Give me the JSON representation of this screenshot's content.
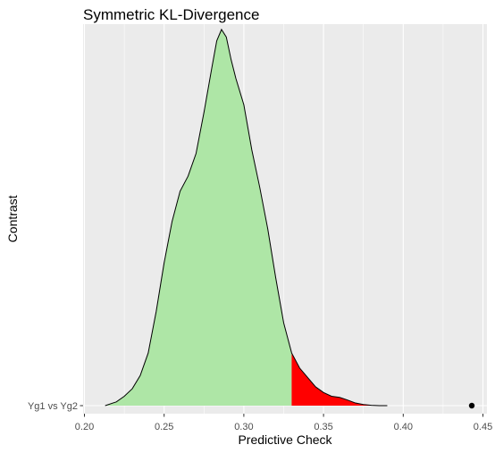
{
  "chart_data": {
    "type": "density",
    "title": "Symmetric KL-Divergence",
    "xlabel": "Predictive Check",
    "ylabel": "Contrast",
    "categories": [
      "Yg1 vs Yg2"
    ],
    "xlim": [
      0.2,
      0.45
    ],
    "x_ticks": [
      0.2,
      0.25,
      0.3,
      0.35,
      0.4,
      0.45
    ],
    "x_tick_labels": [
      "0.20",
      "0.25",
      "0.30",
      "0.35",
      "0.40",
      "0.45"
    ],
    "grid": true,
    "threshold": 0.33,
    "observed_point": 0.443,
    "density": {
      "x": [
        0.213,
        0.22,
        0.225,
        0.23,
        0.235,
        0.24,
        0.245,
        0.25,
        0.255,
        0.26,
        0.265,
        0.27,
        0.275,
        0.28,
        0.283,
        0.286,
        0.289,
        0.292,
        0.295,
        0.3,
        0.305,
        0.31,
        0.315,
        0.32,
        0.325,
        0.33,
        0.335,
        0.34,
        0.345,
        0.35,
        0.355,
        0.36,
        0.365,
        0.37,
        0.375,
        0.38,
        0.385,
        0.39
      ],
      "y": [
        0.0,
        0.01,
        0.025,
        0.045,
        0.08,
        0.14,
        0.25,
        0.38,
        0.49,
        0.57,
        0.61,
        0.67,
        0.78,
        0.9,
        0.97,
        1.0,
        0.98,
        0.92,
        0.87,
        0.8,
        0.68,
        0.58,
        0.47,
        0.34,
        0.22,
        0.14,
        0.1,
        0.075,
        0.05,
        0.035,
        0.025,
        0.022,
        0.015,
        0.007,
        0.003,
        0.001,
        0.0,
        0.0
      ]
    },
    "fill_colors": {
      "below_threshold": "#aee6a6",
      "above_threshold": "#ff0000"
    },
    "panel_color": "#ebebeb",
    "grid_color": "#ffffff"
  }
}
